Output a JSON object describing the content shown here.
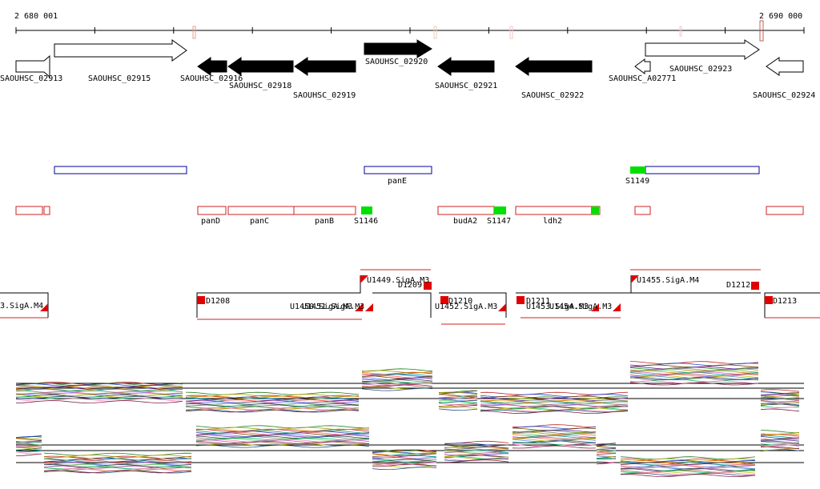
{
  "ruler": {
    "start": "2 680 001",
    "end": "2 690 000"
  },
  "genes": [
    "SAOUHSC_02913",
    "SAOUHSC_02915",
    "SAOUHSC_02916",
    "SAOUHSC_02918",
    "SAOUHSC_02919",
    "SAOUHSC_02920",
    "SAOUHSC_02921",
    "SAOUHSC_02922",
    "SAOUHSC_A02771",
    "SAOUHSC_02923",
    "SAOUHSC_02924"
  ],
  "operons": [
    "panE",
    "S1149"
  ],
  "features": [
    "panD",
    "panC",
    "panB",
    "S1146",
    "budA2",
    "S1147",
    "ldh2"
  ],
  "promoters": [
    "3.SigA.M4",
    "D1208",
    "U1450.SigA.M3",
    "U1451.SigA.M3",
    "U1449.SigA.M3",
    "D1209",
    "D1210",
    "U1452.SigA.M3",
    "D1211",
    "U1453.SigA.M3",
    "U1454.SigA.M3",
    "U1455.SigA.M4",
    "D1212",
    "D1213"
  ]
}
